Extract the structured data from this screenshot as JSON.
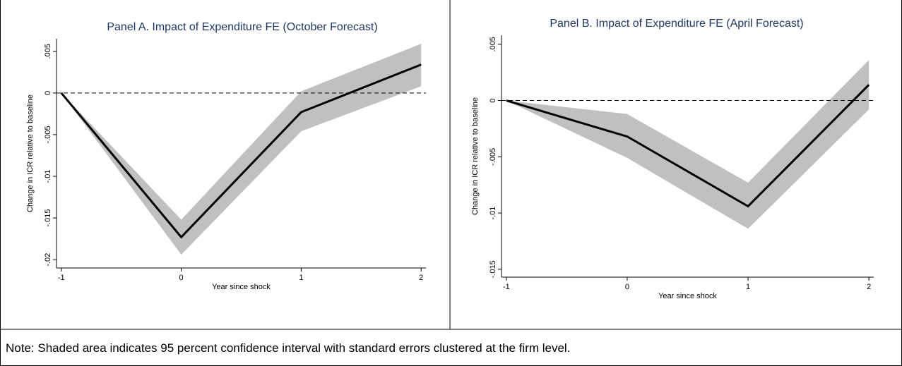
{
  "chart_data": [
    {
      "type": "line",
      "title": "Panel A. Impact of Expenditure FE (October Forecast)",
      "x_label": "Year since shock",
      "y_label": "Change in ICR relative to baseline",
      "x": [
        -1,
        0,
        1,
        2
      ],
      "values": [
        0,
        -0.0173,
        -0.0023,
        0.0034
      ],
      "ci_lower": [
        0,
        -0.0194,
        -0.0046,
        0.0008
      ],
      "ci_upper": [
        0,
        -0.0152,
        0.0002,
        0.0059
      ],
      "color": "#000000",
      "band_color": "#c0c0c0",
      "reference_line": 0,
      "xlim": [
        -1.04,
        2.04
      ],
      "xticks": [
        -1,
        0,
        1,
        2
      ],
      "ylim": [
        -0.021,
        0.0065
      ],
      "yticks": [
        {
          "value": 0.005,
          "label": ".005"
        },
        0,
        {
          "value": -0.005,
          "label": "-.005"
        },
        {
          "value": -0.01,
          "label": "-.01"
        },
        {
          "value": -0.015,
          "label": "-.015"
        },
        {
          "value": -0.02,
          "label": "-.02"
        }
      ]
    },
    {
      "type": "line",
      "title": "Panel B. Impact of Expenditure FE (April Forecast)",
      "x_label": "Year since shock",
      "y_label": "Change in ICR relative to baseline",
      "x": [
        -1,
        0,
        1,
        2
      ],
      "values": [
        0,
        -0.0032,
        -0.0094,
        0.0014
      ],
      "ci_lower": [
        0,
        -0.0051,
        -0.0114,
        -0.0008
      ],
      "ci_upper": [
        0,
        -0.0012,
        -0.0073,
        0.0036
      ],
      "color": "#000000",
      "band_color": "#c0c0c0",
      "reference_line": 0,
      "xlim": [
        -1.04,
        2.04
      ],
      "xticks": [
        -1,
        0,
        1,
        2
      ],
      "ylim": [
        -0.0157,
        0.0058
      ],
      "yticks": [
        {
          "value": 0.005,
          "label": ".005"
        },
        0,
        {
          "value": -0.005,
          "label": "-.005"
        },
        {
          "value": -0.01,
          "label": "-.01"
        },
        {
          "value": -0.015,
          "label": "-.015"
        }
      ]
    }
  ],
  "note": "Note: Shaded area indicates 95 percent confidence interval with standard errors clustered at the firm level."
}
